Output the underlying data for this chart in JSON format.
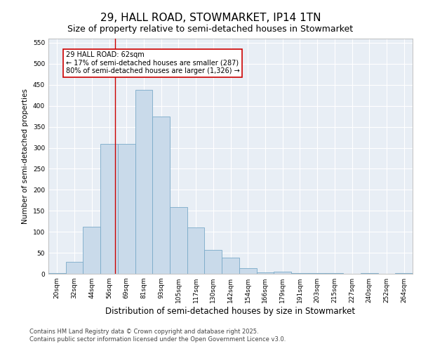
{
  "title": "29, HALL ROAD, STOWMARKET, IP14 1TN",
  "subtitle": "Size of property relative to semi-detached houses in Stowmarket",
  "xlabel": "Distribution of semi-detached houses by size in Stowmarket",
  "ylabel": "Number of semi-detached properties",
  "categories": [
    "20sqm",
    "32sqm",
    "44sqm",
    "56sqm",
    "69sqm",
    "81sqm",
    "93sqm",
    "105sqm",
    "117sqm",
    "130sqm",
    "142sqm",
    "154sqm",
    "166sqm",
    "179sqm",
    "191sqm",
    "203sqm",
    "215sqm",
    "227sqm",
    "240sqm",
    "252sqm",
    "264sqm"
  ],
  "values": [
    2,
    28,
    112,
    310,
    310,
    438,
    375,
    158,
    110,
    57,
    38,
    13,
    4,
    5,
    1,
    1,
    2,
    0,
    1,
    0,
    1
  ],
  "bar_color": "#c9daea",
  "bar_edge_color": "#7aaac8",
  "bar_linewidth": 0.6,
  "annotation_title": "29 HALL ROAD: 62sqm",
  "annotation_line1": "← 17% of semi-detached houses are smaller (287)",
  "annotation_line2": "80% of semi-detached houses are larger (1,326) →",
  "annotation_box_color": "#ffffff",
  "annotation_box_edge": "#cc0000",
  "vline_color": "#cc0000",
  "vline_x": 3.35,
  "ylim": [
    0,
    560
  ],
  "yticks": [
    0,
    50,
    100,
    150,
    200,
    250,
    300,
    350,
    400,
    450,
    500,
    550
  ],
  "background_color": "#e8eef5",
  "grid_color": "#ffffff",
  "footer1": "Contains HM Land Registry data © Crown copyright and database right 2025.",
  "footer2": "Contains public sector information licensed under the Open Government Licence v3.0.",
  "title_fontsize": 11,
  "subtitle_fontsize": 9,
  "xlabel_fontsize": 8.5,
  "ylabel_fontsize": 7.5,
  "tick_fontsize": 6.5,
  "footer_fontsize": 6,
  "annot_fontsize": 7
}
